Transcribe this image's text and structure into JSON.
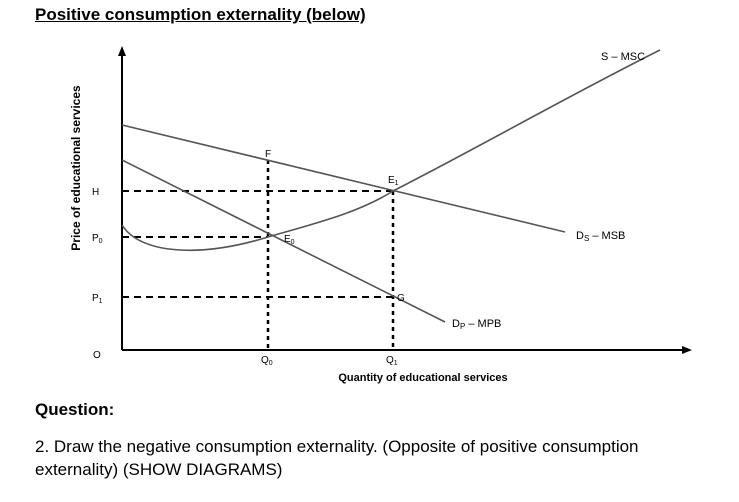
{
  "heading": "Positive consumption externality (below)",
  "diagram": {
    "y_axis_label": "Price of educational services",
    "x_axis_label": "Quantity of educational services",
    "origin_label": "O",
    "price_labels": {
      "h": "H",
      "p0": "P",
      "p0_sub": "0",
      "p1": "P",
      "p1_sub": "1"
    },
    "quantity_labels": {
      "q0": "Q",
      "q0_sub": "0",
      "q1": "Q",
      "q1_sub": "1"
    },
    "points": {
      "f": "F",
      "e0": "E",
      "e0_sub": "0",
      "e1": "E",
      "e1_sub": "1",
      "g": "G"
    },
    "curves": {
      "supply": "S – MSC",
      "ds_main": "D",
      "ds_sub": "S",
      "ds_rest": " – MSB",
      "dp_main": "D",
      "dp_sub": "P",
      "dp_rest": " – MPB"
    }
  },
  "question": {
    "label": "Question:",
    "text": "2. Draw the negative consumption externality. (Opposite of positive consumption externality) (SHOW DIAGRAMS)"
  }
}
